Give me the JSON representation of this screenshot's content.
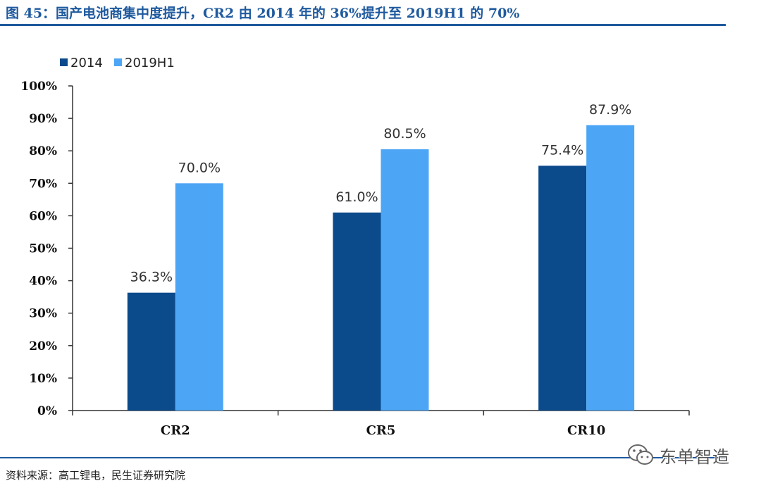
{
  "header": {
    "title": "图 45：国产电池商集中度提升，CR2 由 2014 年的 36%提升至 2019H1 的 70%"
  },
  "footer": {
    "source": "资料来源：高工锂电，民生证券研究院",
    "watermark": "东单智造"
  },
  "colors": {
    "rule": "#1f5a9e",
    "series_2014": "#0b4a8b",
    "series_2019H1": "#4da6f5",
    "axis": "#333333"
  },
  "chart_data": {
    "type": "bar",
    "categories": [
      "CR2",
      "CR5",
      "CR10"
    ],
    "series": [
      {
        "name": "2014",
        "values": [
          36.3,
          61.0,
          75.4
        ],
        "labels": [
          "36.3%",
          "61.0%",
          "75.4%"
        ]
      },
      {
        "name": "2019H1",
        "values": [
          70.0,
          80.5,
          87.9
        ],
        "labels": [
          "70.0%",
          "80.5%",
          "87.9%"
        ]
      }
    ],
    "yticks": [
      "0%",
      "10%",
      "20%",
      "30%",
      "40%",
      "50%",
      "60%",
      "70%",
      "80%",
      "90%",
      "100%"
    ],
    "ylim": [
      0,
      100
    ],
    "legend": "top-left",
    "grid": false
  }
}
